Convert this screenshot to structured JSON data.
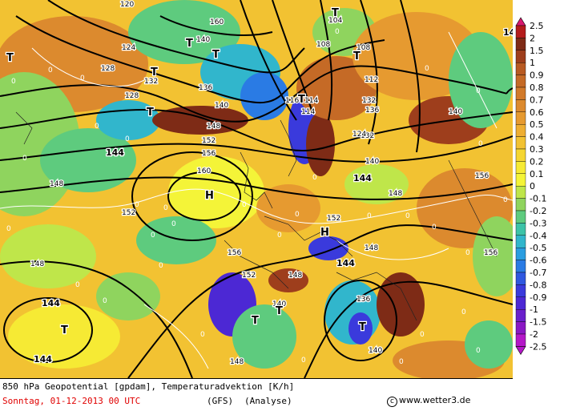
{
  "legend": {
    "labels": [
      "2.5",
      "2",
      "1.5",
      "1",
      "0.9",
      "0.8",
      "0.7",
      "0.6",
      "0.5",
      "0.4",
      "0.3",
      "0.2",
      "0.1",
      "0",
      "-0.1",
      "-0.2",
      "-0.3",
      "-0.4",
      "-0.5",
      "-0.6",
      "-0.7",
      "-0.8",
      "-0.9",
      "-1",
      "-1.5",
      "-2",
      "-2.5"
    ],
    "colors": [
      "#d8186e",
      "#b41c1c",
      "#7e2b16",
      "#9e3e1c",
      "#b85a22",
      "#c56a26",
      "#d27a2a",
      "#dc8a2e",
      "#e69a30",
      "#eeae32",
      "#f2c232",
      "#f5d632",
      "#f6ea34",
      "#f4f438",
      "#bfe64a",
      "#8fd45e",
      "#5ecb7e",
      "#3cc3a8",
      "#31b6cc",
      "#2a9de0",
      "#2a7be4",
      "#2f58e0",
      "#3a3adc",
      "#4c28d4",
      "#6a20cc",
      "#8a18c4",
      "#b418c8"
    ]
  },
  "map": {
    "isohypse_labels": [
      "120",
      "124",
      "128",
      "132",
      "136",
      "140",
      "144",
      "148",
      "152",
      "156",
      "160",
      "104",
      "108",
      "112",
      "116",
      "114"
    ],
    "pressure_centres": [
      {
        "type": "T",
        "label": "T"
      },
      {
        "type": "H",
        "label": "H"
      }
    ],
    "contour_values": [
      "0"
    ]
  },
  "footer": {
    "line1": "850 hPa Geopotential [gpdam], Temperaturadvektion [K/h]",
    "date": "Sonntag, 01-12-2013  00 UTC",
    "model": "(GFS)",
    "type": "(Analyse)",
    "copyright_symbol": "c",
    "site": "www.wetter3.de"
  }
}
